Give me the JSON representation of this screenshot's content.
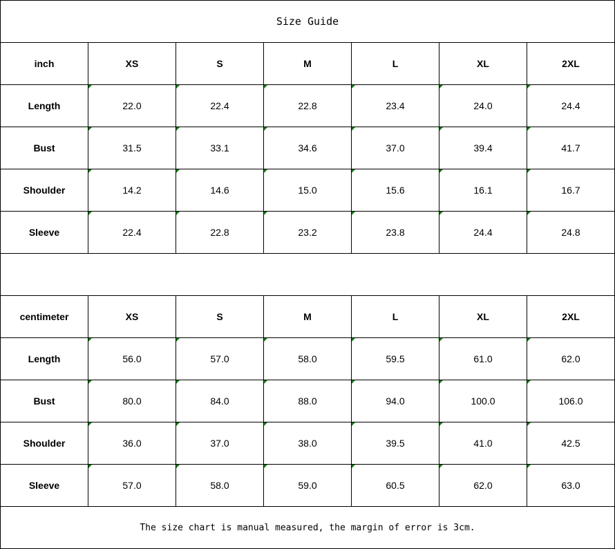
{
  "title": "Size Guide",
  "tables": [
    {
      "unit": "inch",
      "sizes": [
        "XS",
        "S",
        "M",
        "L",
        "XL",
        "2XL"
      ],
      "rows": [
        {
          "label": "Length",
          "values": [
            "22.0",
            "22.4",
            "22.8",
            "23.4",
            "24.0",
            "24.4"
          ]
        },
        {
          "label": "Bust",
          "values": [
            "31.5",
            "33.1",
            "34.6",
            "37.0",
            "39.4",
            "41.7"
          ]
        },
        {
          "label": "Shoulder",
          "values": [
            "14.2",
            "14.6",
            "15.0",
            "15.6",
            "16.1",
            "16.7"
          ]
        },
        {
          "label": "Sleeve",
          "values": [
            "22.4",
            "22.8",
            "23.2",
            "23.8",
            "24.4",
            "24.8"
          ]
        }
      ]
    },
    {
      "unit": "centimeter",
      "sizes": [
        "XS",
        "S",
        "M",
        "L",
        "XL",
        "2XL"
      ],
      "rows": [
        {
          "label": "Length",
          "values": [
            "56.0",
            "57.0",
            "58.0",
            "59.5",
            "61.0",
            "62.0"
          ]
        },
        {
          "label": "Bust",
          "values": [
            "80.0",
            "84.0",
            "88.0",
            "94.0",
            "100.0",
            "106.0"
          ]
        },
        {
          "label": "Shoulder",
          "values": [
            "36.0",
            "37.0",
            "38.0",
            "39.5",
            "41.0",
            "42.5"
          ]
        },
        {
          "label": "Sleeve",
          "values": [
            "57.0",
            "58.0",
            "59.0",
            "60.5",
            "62.0",
            "63.0"
          ]
        }
      ]
    }
  ],
  "note": "The size chart is manual measured, the margin of error is 3cm.",
  "colors": {
    "cell_marker": "#008000",
    "border": "#000000"
  }
}
